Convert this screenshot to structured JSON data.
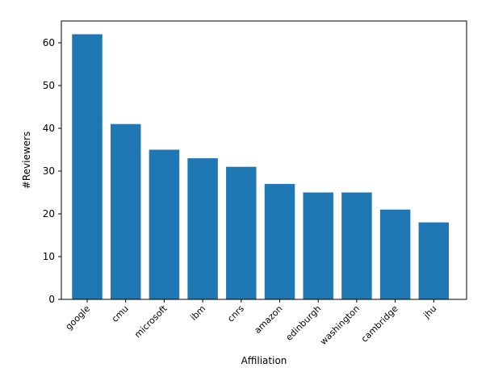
{
  "chart_data": {
    "type": "bar",
    "title": "",
    "xlabel": "Affiliation",
    "ylabel": "#Reviewers",
    "categories": [
      "google",
      "cmu",
      "microsoft",
      "ibm",
      "cnrs",
      "amazon",
      "edinburgh",
      "washington",
      "cambridge",
      "jhu"
    ],
    "values": [
      62,
      41,
      35,
      33,
      31,
      27,
      25,
      25,
      21,
      18
    ],
    "ylim": [
      0,
      65.1
    ],
    "yticks": [
      0,
      10,
      20,
      30,
      40,
      50,
      60
    ],
    "grid": false,
    "bar_color": "#1f77b4"
  }
}
